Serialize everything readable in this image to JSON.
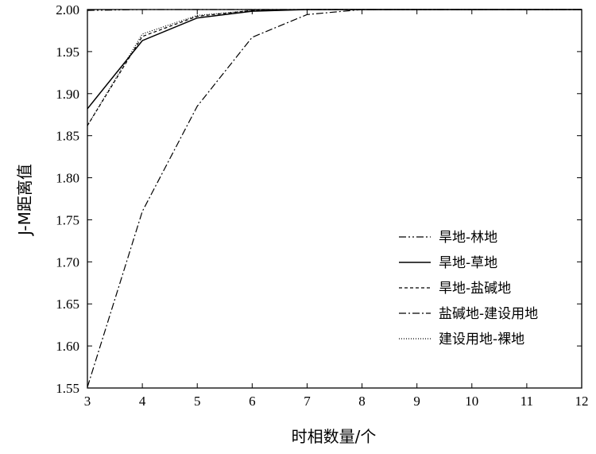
{
  "chart_data": {
    "type": "line",
    "title": "",
    "xlabel": "时相数量/个",
    "ylabel": "J-M距离值",
    "xlim": [
      3,
      12
    ],
    "ylim": [
      1.55,
      2.0
    ],
    "x": [
      3,
      4,
      5,
      6,
      7,
      8,
      9,
      10,
      11,
      12
    ],
    "x_ticks": [
      "3",
      "4",
      "5",
      "6",
      "7",
      "8",
      "9",
      "10",
      "11",
      "12"
    ],
    "y_ticks": [
      "1.55",
      "1.60",
      "1.65",
      "1.70",
      "1.75",
      "1.80",
      "1.85",
      "1.90",
      "1.95",
      "2.00"
    ],
    "y_tick_values": [
      1.55,
      1.6,
      1.65,
      1.7,
      1.75,
      1.8,
      1.85,
      1.9,
      1.95,
      2.0
    ],
    "legend_position": "right",
    "series": [
      {
        "name": "旱地-林地",
        "style": "dashdotdot",
        "color": "#000000",
        "values": [
          1.999,
          2.0,
          2.0,
          2.0,
          2.0,
          2.0,
          2.0,
          2.0,
          2.0,
          2.0
        ]
      },
      {
        "name": "旱地-草地",
        "style": "solid",
        "color": "#000000",
        "values": [
          1.882,
          1.963,
          1.99,
          1.998,
          2.0,
          2.0,
          2.0,
          2.0,
          2.0,
          2.0
        ]
      },
      {
        "name": "旱地-盐碱地",
        "style": "dashed",
        "color": "#000000",
        "values": [
          1.862,
          1.968,
          1.992,
          1.999,
          2.0,
          2.0,
          2.0,
          2.0,
          2.0,
          2.0
        ]
      },
      {
        "name": "盐碱地-建设用地",
        "style": "dashdot",
        "color": "#000000",
        "values": [
          1.551,
          1.76,
          1.885,
          1.967,
          1.994,
          2.0,
          2.0,
          2.0,
          2.0,
          2.0
        ]
      },
      {
        "name": "建设用地-裸地",
        "style": "dotted",
        "color": "#000000",
        "values": [
          1.862,
          1.971,
          1.993,
          1.999,
          2.0,
          2.0,
          2.0,
          2.0,
          2.0,
          2.0
        ]
      }
    ]
  }
}
